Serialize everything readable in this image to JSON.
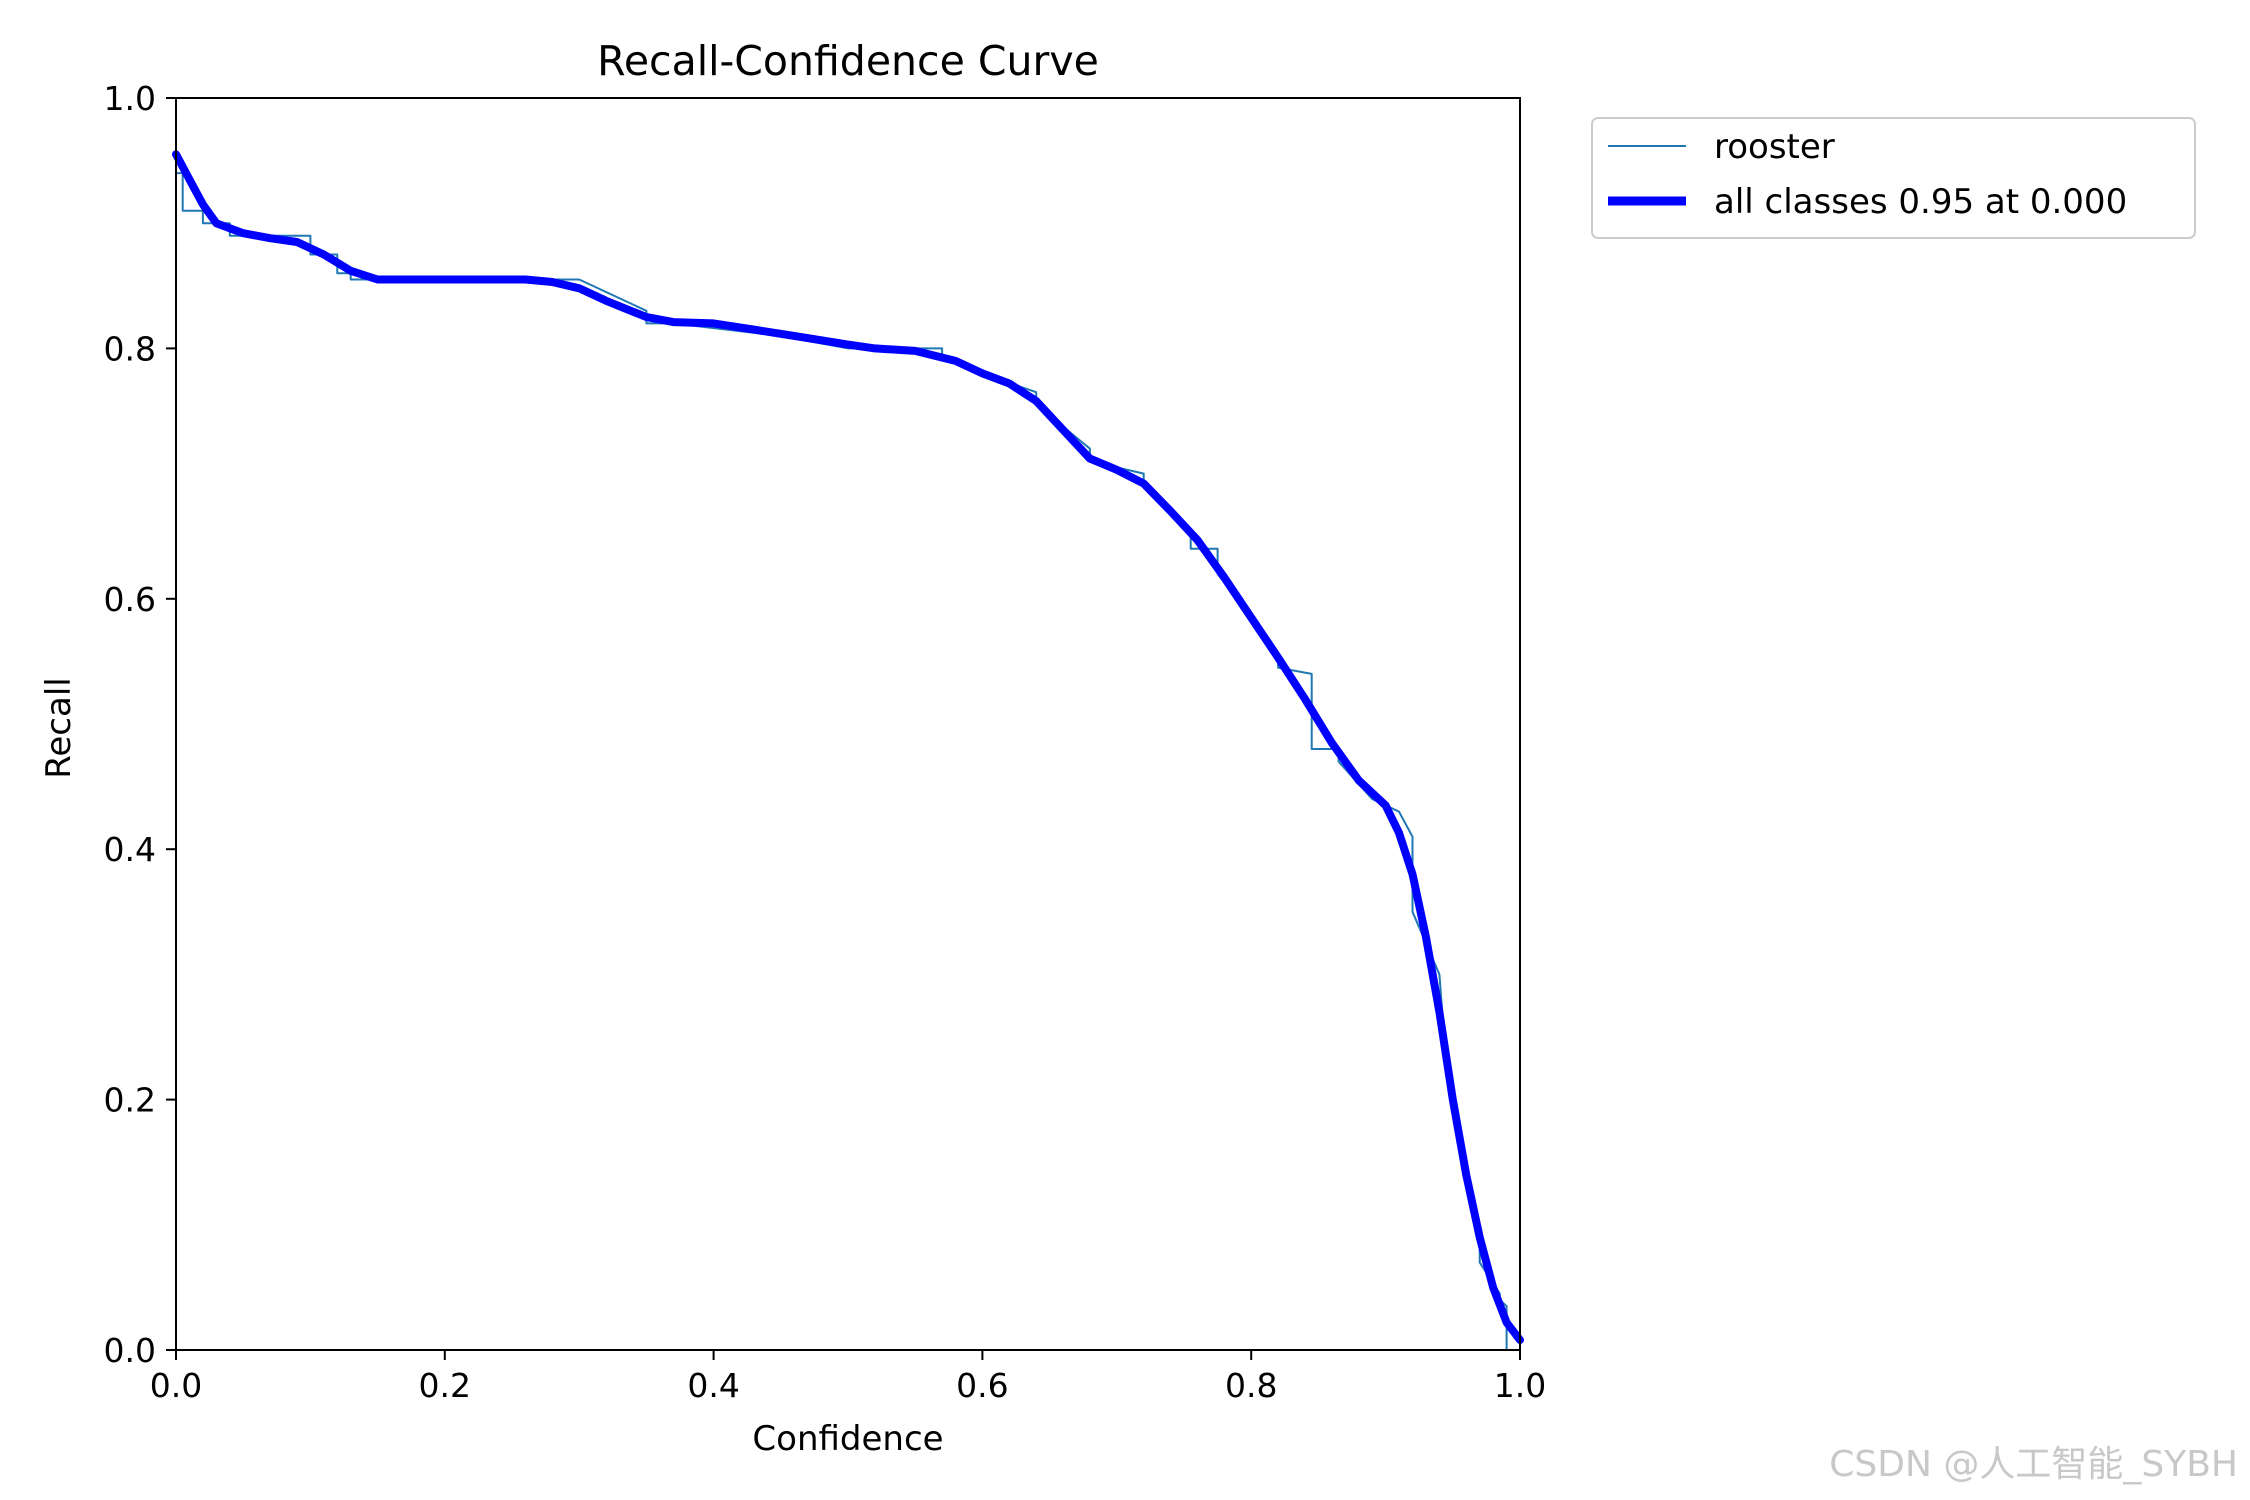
{
  "watermark": "CSDN @人工智能_SYBH",
  "chart_data": {
    "type": "line",
    "title": "Recall-Confidence Curve",
    "xlabel": "Confidence",
    "ylabel": "Recall",
    "xlim": [
      0.0,
      1.0
    ],
    "ylim": [
      0.0,
      1.0
    ],
    "xticks": [
      "0.0",
      "0.2",
      "0.4",
      "0.6",
      "0.8",
      "1.0"
    ],
    "yticks": [
      "0.0",
      "0.2",
      "0.4",
      "0.6",
      "0.8",
      "1.0"
    ],
    "grid": false,
    "legend_position": "outside top-right",
    "series": [
      {
        "name": "rooster",
        "color": "#1f77b4",
        "style": "step",
        "x": [
          0.0,
          0.0,
          0.005,
          0.005,
          0.02,
          0.02,
          0.04,
          0.04,
          0.1,
          0.1,
          0.12,
          0.12,
          0.13,
          0.13,
          0.3,
          0.35,
          0.35,
          0.37,
          0.45,
          0.5,
          0.57,
          0.57,
          0.6,
          0.64,
          0.64,
          0.68,
          0.68,
          0.72,
          0.72,
          0.755,
          0.755,
          0.775,
          0.775,
          0.8,
          0.82,
          0.82,
          0.845,
          0.845,
          0.865,
          0.865,
          0.89,
          0.91,
          0.92,
          0.92,
          0.94,
          0.945,
          0.945,
          0.97,
          0.97,
          0.985,
          0.985,
          0.99,
          0.99
        ],
        "y": [
          0.99,
          0.94,
          0.94,
          0.91,
          0.91,
          0.9,
          0.9,
          0.89,
          0.89,
          0.875,
          0.875,
          0.86,
          0.86,
          0.855,
          0.855,
          0.83,
          0.82,
          0.82,
          0.81,
          0.8,
          0.8,
          0.795,
          0.78,
          0.765,
          0.755,
          0.72,
          0.71,
          0.7,
          0.69,
          0.655,
          0.64,
          0.64,
          0.62,
          0.585,
          0.555,
          0.545,
          0.54,
          0.48,
          0.48,
          0.47,
          0.44,
          0.43,
          0.41,
          0.35,
          0.3,
          0.23,
          0.22,
          0.08,
          0.07,
          0.045,
          0.04,
          0.035,
          0.0
        ]
      },
      {
        "name": "all classes 0.95 at 0.000",
        "color": "#0000ff",
        "style": "line",
        "x": [
          0.0,
          0.01,
          0.02,
          0.03,
          0.05,
          0.07,
          0.09,
          0.11,
          0.13,
          0.15,
          0.18,
          0.22,
          0.26,
          0.28,
          0.3,
          0.32,
          0.35,
          0.37,
          0.4,
          0.43,
          0.46,
          0.5,
          0.52,
          0.55,
          0.58,
          0.6,
          0.62,
          0.64,
          0.66,
          0.68,
          0.7,
          0.72,
          0.74,
          0.76,
          0.78,
          0.8,
          0.82,
          0.84,
          0.86,
          0.88,
          0.9,
          0.91,
          0.92,
          0.93,
          0.94,
          0.95,
          0.96,
          0.97,
          0.98,
          0.99,
          1.0
        ],
        "y": [
          0.955,
          0.935,
          0.915,
          0.9,
          0.892,
          0.888,
          0.885,
          0.875,
          0.862,
          0.855,
          0.855,
          0.855,
          0.855,
          0.853,
          0.848,
          0.838,
          0.825,
          0.821,
          0.82,
          0.815,
          0.81,
          0.803,
          0.8,
          0.798,
          0.79,
          0.78,
          0.772,
          0.758,
          0.735,
          0.712,
          0.703,
          0.692,
          0.67,
          0.647,
          0.617,
          0.585,
          0.553,
          0.52,
          0.485,
          0.455,
          0.435,
          0.413,
          0.38,
          0.33,
          0.27,
          0.2,
          0.14,
          0.09,
          0.05,
          0.022,
          0.008
        ]
      }
    ]
  }
}
